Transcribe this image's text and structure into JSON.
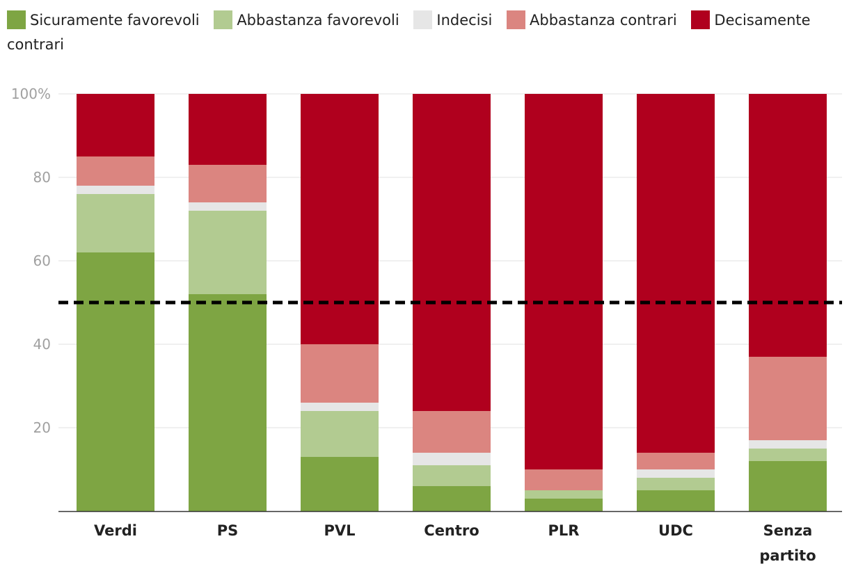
{
  "chart_data": {
    "type": "bar",
    "stacked": true,
    "title": "",
    "xlabel": "",
    "ylabel": "",
    "ylim": [
      0,
      100
    ],
    "yticks": [
      {
        "value": 20,
        "label": "20"
      },
      {
        "value": 40,
        "label": "40"
      },
      {
        "value": 60,
        "label": "60"
      },
      {
        "value": 80,
        "label": "80"
      },
      {
        "value": 100,
        "label": "100%"
      }
    ],
    "reference_line": {
      "value": 50,
      "style": "dashed",
      "color": "#000000"
    },
    "categories": [
      "Verdi",
      "PS",
      "PVL",
      "Centro",
      "PLR",
      "UDC",
      "Senza partito"
    ],
    "series": [
      {
        "name": "Sicuramente favorevoli",
        "color": "#7ea543",
        "values": [
          62,
          52,
          13,
          6,
          3,
          5,
          12
        ]
      },
      {
        "name": "Abbastanza favorevoli",
        "color": "#b2cb91",
        "values": [
          14,
          20,
          11,
          5,
          2,
          3,
          3
        ]
      },
      {
        "name": "Indecisi",
        "color": "#e6e6e6",
        "values": [
          2,
          2,
          2,
          3,
          0,
          2,
          2
        ]
      },
      {
        "name": "Abbastanza contrari",
        "color": "#db8580",
        "values": [
          7,
          9,
          14,
          10,
          5,
          4,
          20
        ]
      },
      {
        "name": "Decisamente contrari",
        "color": "#b0001e",
        "values": [
          15,
          17,
          60,
          76,
          90,
          86,
          63
        ]
      }
    ],
    "legend_position": "top"
  }
}
